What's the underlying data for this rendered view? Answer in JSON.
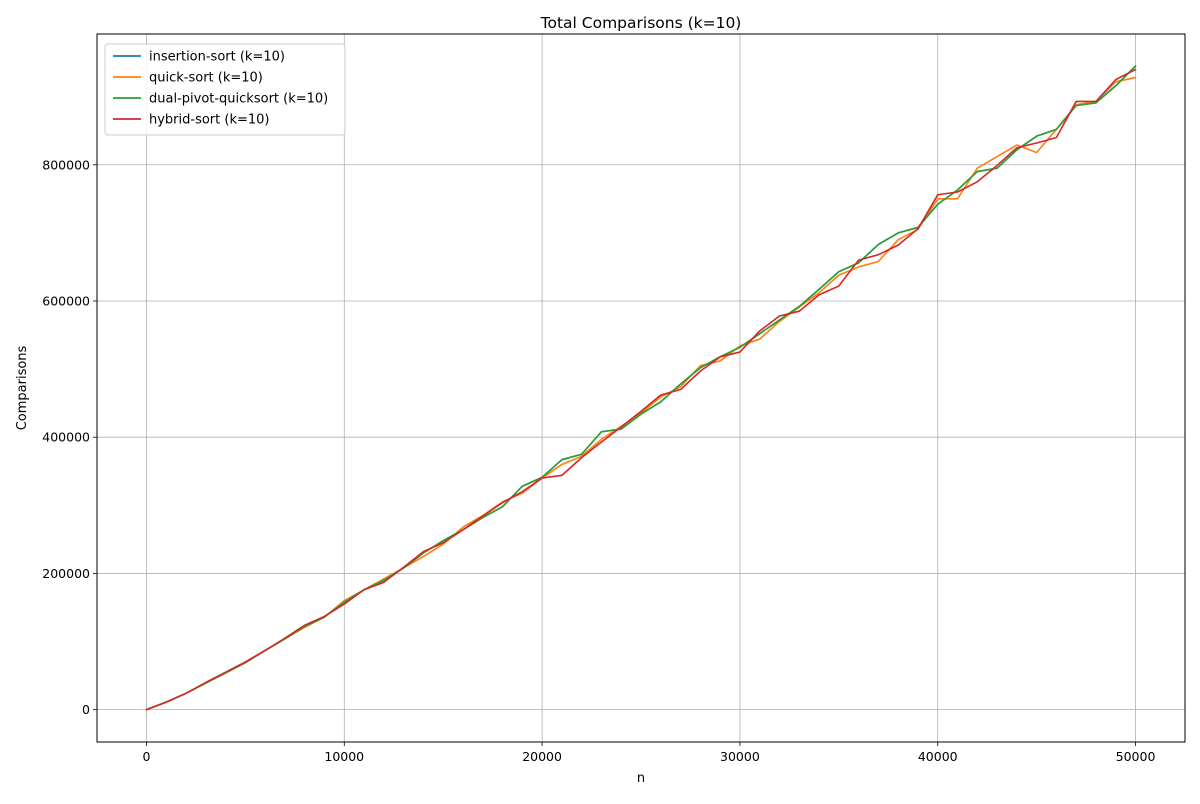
{
  "chart_data": {
    "type": "line",
    "title": "Total Comparisons (k=10)",
    "xlabel": "n",
    "ylabel": "Comparisons",
    "xlim": [
      -2500,
      52500
    ],
    "ylim": [
      -47500,
      992000
    ],
    "xticks": [
      0,
      10000,
      20000,
      30000,
      40000,
      50000
    ],
    "yticks": [
      0,
      200000,
      400000,
      600000,
      800000
    ],
    "grid": true,
    "legend_position": "top-left",
    "x": [
      0,
      1000,
      2000,
      3000,
      4000,
      5000,
      6000,
      7000,
      8000,
      9000,
      10000,
      11000,
      12000,
      13000,
      14000,
      15000,
      16000,
      17000,
      18000,
      19000,
      20000,
      21000,
      22000,
      23000,
      24000,
      25000,
      26000,
      27000,
      28000,
      29000,
      30000,
      31000,
      32000,
      33000,
      34000,
      35000,
      36000,
      37000,
      38000,
      39000,
      40000,
      41000,
      42000,
      43000,
      44000,
      45000,
      46000,
      47000,
      48000,
      49000,
      50000
    ],
    "series": [
      {
        "name": "insertion-sort (k=10)",
        "color": "#1f77b4",
        "values": [
          0,
          11000,
          24000,
          39000,
          54000,
          69000,
          87000,
          104000,
          122000,
          136000,
          158000,
          176000,
          190000,
          208000,
          230000,
          248000,
          264000,
          282000,
          298000,
          328000,
          341000,
          367000,
          375000,
          408000,
          412000,
          434000,
          452000,
          478000,
          502000,
          518000,
          532000,
          552000,
          572000,
          592000,
          617000,
          643000,
          656000,
          683000,
          700000,
          708000,
          742000,
          763000,
          790000,
          795000,
          822000,
          842000,
          852000,
          887000,
          891000,
          916000,
          945000
        ]
      },
      {
        "name": "quick-sort (k=10)",
        "color": "#ff7f0e",
        "values": [
          0,
          11000,
          24000,
          39000,
          54000,
          69000,
          87000,
          104000,
          121000,
          136000,
          160000,
          176000,
          192000,
          208000,
          225000,
          243000,
          268000,
          285000,
          305000,
          318000,
          340000,
          360000,
          372000,
          397000,
          416000,
          436000,
          459000,
          474000,
          505000,
          512000,
          534000,
          544000,
          570000,
          591000,
          612000,
          638000,
          650000,
          658000,
          690000,
          705000,
          750000,
          750000,
          795000,
          812000,
          829000,
          818000,
          852000,
          888000,
          893000,
          922000,
          928000
        ]
      },
      {
        "name": "dual-pivot-quicksort (k=10)",
        "color": "#2ca02c",
        "values": [
          0,
          11000,
          24000,
          39000,
          54000,
          69000,
          87000,
          104000,
          122000,
          136000,
          158000,
          176000,
          190000,
          208000,
          230000,
          248000,
          264000,
          282000,
          298000,
          328000,
          341000,
          367000,
          375000,
          408000,
          412000,
          434000,
          452000,
          478000,
          502000,
          518000,
          532000,
          552000,
          572000,
          592000,
          617000,
          643000,
          656000,
          683000,
          700000,
          708000,
          742000,
          763000,
          790000,
          795000,
          822000,
          842000,
          852000,
          887000,
          891000,
          916000,
          945000
        ]
      },
      {
        "name": "hybrid-sort (k=10)",
        "color": "#d62728",
        "values": [
          0,
          11000,
          24000,
          40000,
          55000,
          70000,
          87000,
          105000,
          124000,
          137000,
          155000,
          176000,
          187000,
          209000,
          232000,
          245000,
          264000,
          284000,
          304000,
          320000,
          340000,
          344000,
          370000,
          393000,
          415000,
          438000,
          462000,
          470000,
          497000,
          518000,
          525000,
          556000,
          578000,
          585000,
          609000,
          622000,
          660000,
          668000,
          682000,
          706000,
          756000,
          760000,
          775000,
          799000,
          825000,
          832000,
          840000,
          893000,
          893000,
          925000,
          940000
        ]
      }
    ]
  }
}
